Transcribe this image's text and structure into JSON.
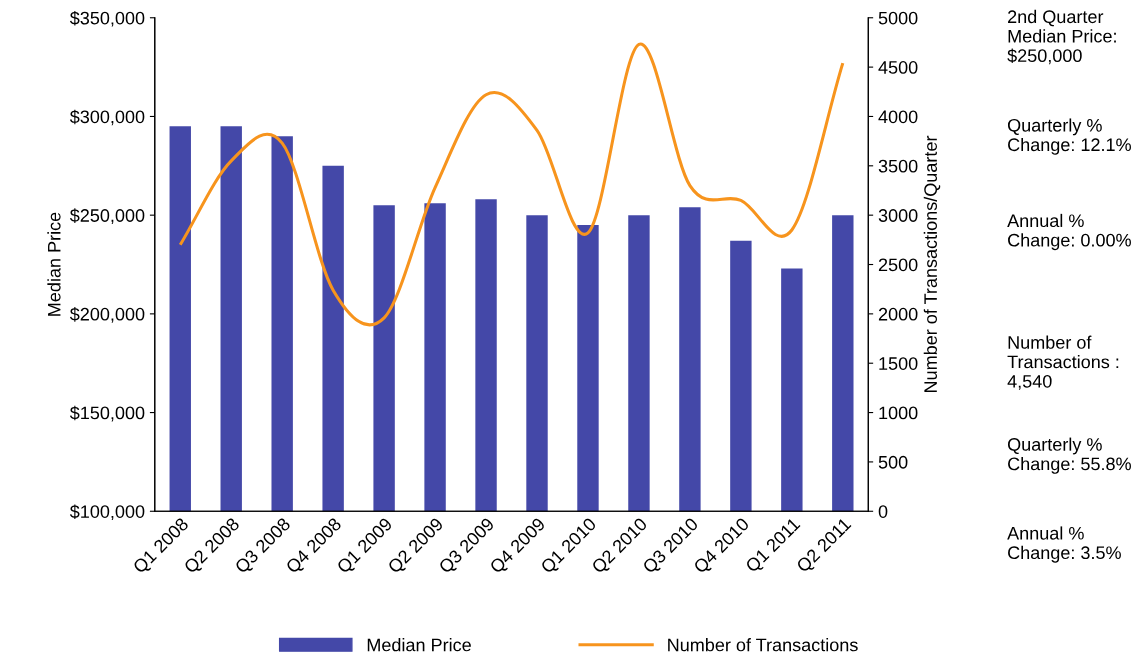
{
  "chart_data": {
    "type": "bar",
    "ylabel": "Median Price",
    "y2label": "Number of Transactions/Quarter",
    "categories": [
      "Q1 2008",
      "Q2 2008",
      "Q3 2008",
      "Q4 2008",
      "Q1 2009",
      "Q2 2009",
      "Q3 2009",
      "Q4 2009",
      "Q1 2010",
      "Q2 2010",
      "Q3 2010",
      "Q4 2010",
      "Q1 2011",
      "Q2 2011"
    ],
    "series": [
      {
        "name": "Median Price",
        "color": "#4448a8",
        "values": [
          295000,
          295000,
          290000,
          275000,
          255000,
          256000,
          258000,
          250000,
          245000,
          250000,
          254000,
          237000,
          223000,
          250000
        ]
      },
      {
        "name": "Number of Transactions",
        "type": "line",
        "axis": "y2",
        "color": "#f7941d",
        "values": [
          2700,
          3550,
          3730,
          2240,
          1960,
          3280,
          4220,
          3860,
          2820,
          4730,
          3300,
          3150,
          2850,
          4540
        ]
      }
    ],
    "ylim": [
      100000,
      350000
    ],
    "yticks": [
      {
        "value": 100000,
        "label": "$100,000"
      },
      {
        "value": 150000,
        "label": "$150,000"
      },
      {
        "value": 200000,
        "label": "$200,000"
      },
      {
        "value": 250000,
        "label": "$250,000"
      },
      {
        "value": 300000,
        "label": "$300,000"
      },
      {
        "value": 350000,
        "label": "$350,000"
      }
    ],
    "y2lim": [
      0,
      5000
    ],
    "y2ticks": [
      0,
      500,
      1000,
      1500,
      2000,
      2500,
      3000,
      3500,
      4000,
      4500,
      5000
    ],
    "grid": false,
    "legend": "bottom",
    "annotations": [
      "2nd Quarter Median Price: $250,000",
      "Quarterly % Change: 12.1%",
      "Annual % Change: 0.00%",
      "Number of Transactions : 4,540",
      "Quarterly % Change: 55.8%",
      "Annual % Change: 3.5%"
    ]
  }
}
